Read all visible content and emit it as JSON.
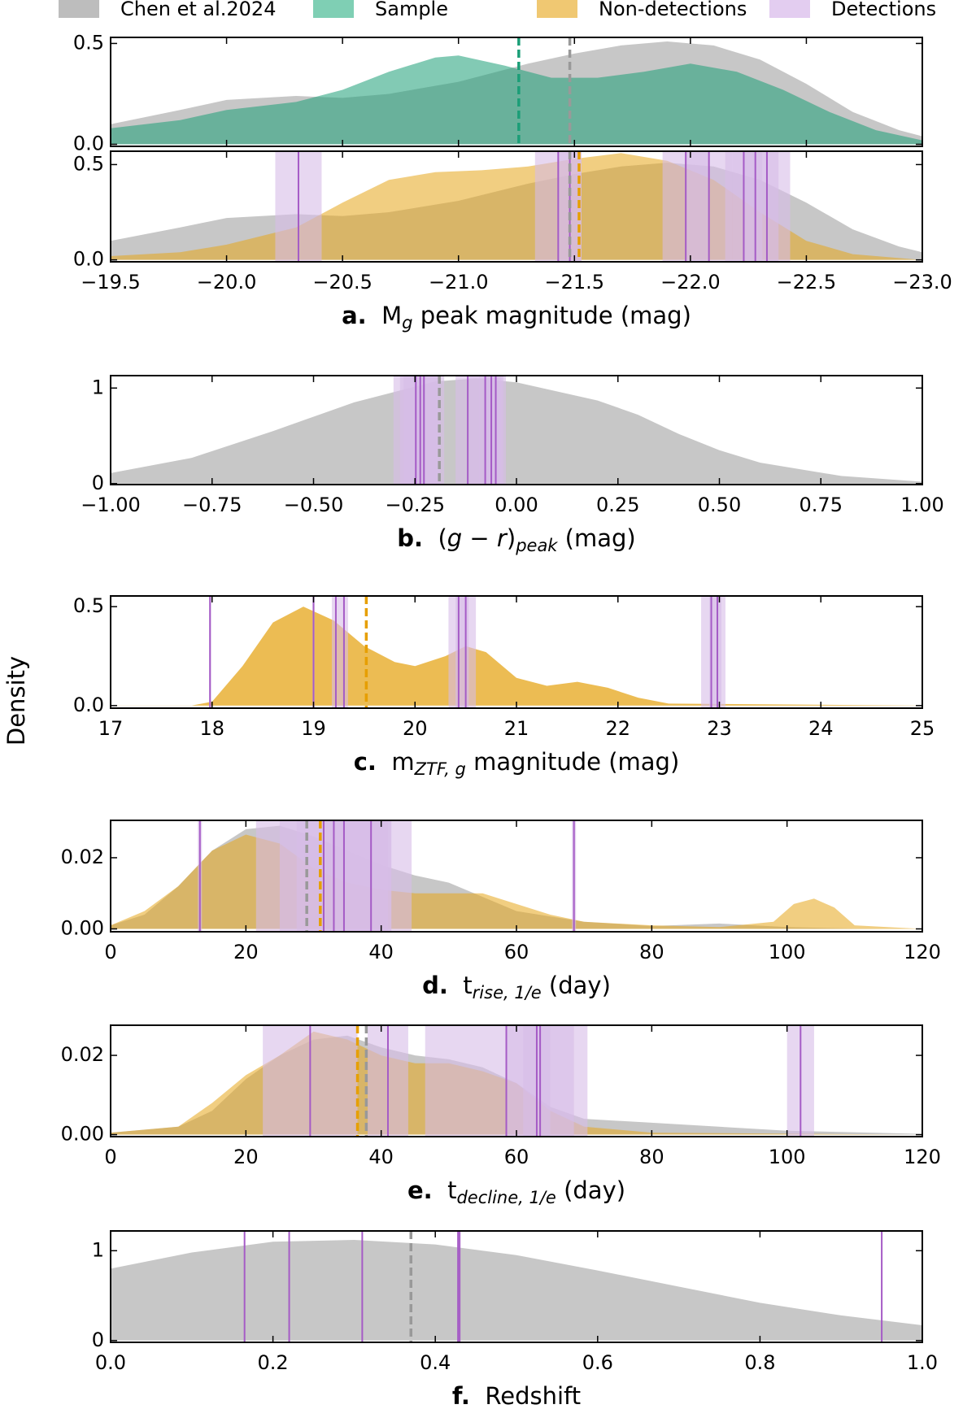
{
  "ylabel": "Density",
  "legend": [
    {
      "label": "Chen et al.2024",
      "color": "#bdbdbd"
    },
    {
      "label": "Sample",
      "color": "#7fcfb4"
    },
    {
      "label": "Non-detections",
      "color": "#f0c872"
    },
    {
      "label": "Detections",
      "color": "#e3cdf0"
    }
  ],
  "chart_data": [
    {
      "type": "area",
      "xlim": [
        -19.5,
        -23.0
      ],
      "xticks": [
        -19.5,
        -20.0,
        -20.5,
        -21.0,
        -21.5,
        -22.0,
        -22.5,
        -23.0
      ],
      "xticklabels": false,
      "ylim": [
        -0.01,
        0.53
      ],
      "yticks": [
        {
          "value": 0,
          "label": "0.0"
        },
        0.5
      ],
      "series": [
        {
          "color": "#b4b4b4",
          "x": [
            -19.5,
            -19.8,
            -20.0,
            -20.3,
            -20.5,
            -20.7,
            -21.0,
            -21.3,
            -21.5,
            -21.7,
            -21.9,
            -22.1,
            -22.3,
            -22.5,
            -22.7,
            -22.9,
            -23.0
          ],
          "values": [
            0.1,
            0.17,
            0.22,
            0.24,
            0.23,
            0.25,
            0.31,
            0.4,
            0.45,
            0.49,
            0.51,
            0.49,
            0.42,
            0.3,
            0.16,
            0.07,
            0.04
          ]
        },
        {
          "color": "#1b9e77",
          "x": [
            -19.5,
            -19.8,
            -20.0,
            -20.3,
            -20.5,
            -20.7,
            -20.9,
            -21.0,
            -21.2,
            -21.4,
            -21.6,
            -21.8,
            -22.0,
            -22.2,
            -22.4,
            -22.6,
            -22.8,
            -23.0
          ],
          "values": [
            0.08,
            0.12,
            0.17,
            0.21,
            0.27,
            0.36,
            0.43,
            0.44,
            0.39,
            0.33,
            0.33,
            0.36,
            0.4,
            0.36,
            0.27,
            0.16,
            0.07,
            0.02
          ]
        }
      ],
      "medians": [
        {
          "value": -21.26,
          "color": "#1b9e77"
        },
        {
          "value": -21.48,
          "color": "#999999"
        }
      ]
    },
    {
      "type": "area",
      "xlim": [
        -19.5,
        -23.0
      ],
      "xticks": [
        {
          "value": -19.5,
          "label": "−19.5"
        },
        {
          "value": -20.0,
          "label": "−20.0"
        },
        {
          "value": -20.5,
          "label": "−20.5"
        },
        {
          "value": -21.0,
          "label": "−21.0"
        },
        {
          "value": -21.5,
          "label": "−21.5"
        },
        {
          "value": -22.0,
          "label": "−22.0"
        },
        {
          "value": -22.5,
          "label": "−22.5"
        },
        {
          "value": -23.0,
          "label": "−23.0"
        }
      ],
      "ylim": [
        -0.01,
        0.57
      ],
      "yticks": [
        {
          "value": 0,
          "label": "0.0"
        },
        0.5
      ],
      "xlabel": {
        "letter": "a.",
        "parts": [
          {
            "text": "M"
          },
          {
            "text": "g",
            "sub": true
          },
          {
            "text": " peak magnitude (mag)"
          }
        ]
      },
      "series": [
        {
          "color": "#b4b4b4",
          "x": [
            -19.5,
            -19.8,
            -20.0,
            -20.3,
            -20.5,
            -20.7,
            -21.0,
            -21.3,
            -21.5,
            -21.7,
            -21.9,
            -22.1,
            -22.3,
            -22.5,
            -22.7,
            -22.9,
            -23.0
          ],
          "values": [
            0.1,
            0.17,
            0.22,
            0.24,
            0.23,
            0.25,
            0.31,
            0.4,
            0.45,
            0.49,
            0.51,
            0.49,
            0.42,
            0.3,
            0.16,
            0.07,
            0.04
          ]
        },
        {
          "color": "#e6a519",
          "x": [
            -19.5,
            -19.8,
            -20.0,
            -20.3,
            -20.5,
            -20.7,
            -20.9,
            -21.1,
            -21.3,
            -21.5,
            -21.7,
            -21.9,
            -22.1,
            -22.3,
            -22.5,
            -22.7,
            -23.0
          ],
          "values": [
            0.02,
            0.04,
            0.08,
            0.17,
            0.3,
            0.42,
            0.46,
            0.47,
            0.49,
            0.53,
            0.56,
            0.52,
            0.42,
            0.25,
            0.1,
            0.03,
            0.0
          ]
        }
      ],
      "medians": [
        {
          "value": -21.48,
          "color": "#999999"
        },
        {
          "value": -21.52,
          "color": "#e69f00"
        }
      ],
      "detections": {
        "color": "#a55bc6",
        "band_color": "#d7bde8",
        "x": [
          -20.31,
          -21.43,
          -21.48,
          -21.98,
          -22.08,
          -22.23,
          -22.28,
          -22.33
        ],
        "err": [
          0.1,
          0.1,
          0.05,
          0.1,
          0.1,
          0.08,
          0.1,
          0.1
        ]
      }
    },
    {
      "type": "area",
      "xlim": [
        -1.0,
        1.0
      ],
      "xticks": [
        {
          "value": -1.0,
          "label": "−1.00"
        },
        {
          "value": -0.75,
          "label": "−0.75"
        },
        {
          "value": -0.5,
          "label": "−0.50"
        },
        {
          "value": -0.25,
          "label": "−0.25"
        },
        {
          "value": 0,
          "label": "0.00"
        },
        {
          "value": 0.25,
          "label": "0.25"
        },
        {
          "value": 0.5,
          "label": "0.50"
        },
        {
          "value": 0.75,
          "label": "0.75"
        },
        {
          "value": 1.0,
          "label": "1.00"
        }
      ],
      "ylim": [
        -0.01,
        1.13
      ],
      "yticks": [
        0,
        1
      ],
      "xlabel": {
        "letter": "b.",
        "parts": [
          {
            "text": "("
          },
          {
            "text": "g − r",
            "italic": true
          },
          {
            "text": ")"
          },
          {
            "text": "peak",
            "sub": true
          },
          {
            "text": " (mag)"
          }
        ]
      },
      "series": [
        {
          "color": "#b4b4b4",
          "x": [
            -1.0,
            -0.8,
            -0.6,
            -0.4,
            -0.2,
            -0.1,
            0.0,
            0.2,
            0.3,
            0.4,
            0.5,
            0.6,
            0.8,
            1.0
          ],
          "values": [
            0.11,
            0.27,
            0.55,
            0.85,
            1.07,
            1.1,
            1.06,
            0.87,
            0.72,
            0.52,
            0.35,
            0.22,
            0.08,
            0.02
          ]
        }
      ],
      "medians": [
        {
          "value": -0.19,
          "color": "#999999"
        }
      ],
      "detections": {
        "color": "#a55bc6",
        "band_color": "#d7bde8",
        "x": [
          -0.248,
          -0.237,
          -0.228,
          -0.12,
          -0.077,
          -0.062,
          -0.051
        ],
        "err": [
          0.055,
          0.05,
          0.05,
          0.03,
          0.04,
          0.03,
          0.025
        ]
      }
    },
    {
      "type": "area",
      "xlim": [
        17,
        25
      ],
      "xticks": [
        17,
        18,
        19,
        20,
        21,
        22,
        23,
        24,
        25
      ],
      "ylim": [
        -0.013,
        0.554
      ],
      "yticks": [
        {
          "value": 0,
          "label": "0.0"
        },
        0.5
      ],
      "xlabel": {
        "letter": "c.",
        "parts": [
          {
            "text": "m"
          },
          {
            "text": "ZTF, g",
            "sub": true
          },
          {
            "text": " magnitude (mag)"
          }
        ]
      },
      "series": [
        {
          "color": "#e6a519",
          "x": [
            17,
            17.8,
            18.0,
            18.3,
            18.6,
            18.9,
            19.2,
            19.5,
            19.8,
            20.0,
            20.3,
            20.5,
            20.7,
            21.0,
            21.3,
            21.6,
            21.9,
            22.2,
            22.5,
            25
          ],
          "values": [
            0,
            0,
            0.02,
            0.2,
            0.42,
            0.5,
            0.43,
            0.3,
            0.22,
            0.2,
            0.25,
            0.3,
            0.27,
            0.14,
            0.1,
            0.12,
            0.09,
            0.04,
            0.01,
            0
          ]
        }
      ],
      "medians": [
        {
          "value": 19.52,
          "color": "#e69f00"
        }
      ],
      "detections": {
        "color": "#a55bc6",
        "band_color": "#d7bde8",
        "x": [
          17.98,
          19.0,
          19.22,
          19.3,
          20.43,
          20.5,
          22.92,
          22.98
        ],
        "err": [
          0.01,
          0.01,
          0.04,
          0.04,
          0.1,
          0.1,
          0.1,
          0.08
        ]
      }
    },
    {
      "type": "area",
      "xlim": [
        0,
        120
      ],
      "xticks": [
        0,
        20,
        40,
        60,
        80,
        100,
        120
      ],
      "ylim": [
        -0.0008,
        0.0305
      ],
      "yticks": [
        {
          "value": 0,
          "label": "0.00"
        },
        0.02
      ],
      "xlabel": {
        "letter": "d.",
        "parts": [
          {
            "text": "t"
          },
          {
            "text": "rise, 1/e",
            "sub": true
          },
          {
            "text": " (day)"
          }
        ]
      },
      "series": [
        {
          "color": "#b4b4b4",
          "x": [
            0,
            5,
            10,
            15,
            20,
            25,
            30,
            35,
            40,
            45,
            50,
            55,
            60,
            70,
            80,
            90,
            100,
            110,
            120
          ],
          "values": [
            0.001,
            0.004,
            0.012,
            0.022,
            0.028,
            0.029,
            0.026,
            0.022,
            0.018,
            0.015,
            0.013,
            0.009,
            0.005,
            0.002,
            0.0008,
            0.0015,
            0.0005,
            0.0001,
            0
          ]
        },
        {
          "color": "#e6a519",
          "x": [
            0,
            5,
            10,
            15,
            20,
            25,
            30,
            35,
            40,
            45,
            50,
            55,
            60,
            65,
            70,
            80,
            90,
            98,
            101,
            104,
            107,
            110,
            120
          ],
          "values": [
            0.001,
            0.005,
            0.012,
            0.022,
            0.0265,
            0.024,
            0.017,
            0.013,
            0.011,
            0.01,
            0.01,
            0.01,
            0.007,
            0.004,
            0.002,
            0.001,
            0.0005,
            0.002,
            0.007,
            0.0085,
            0.006,
            0.001,
            0
          ]
        }
      ],
      "medians": [
        {
          "value": 29,
          "color": "#999999"
        },
        {
          "value": 31,
          "color": "#e69f00"
        }
      ],
      "detections": {
        "color": "#a55bc6",
        "band_color": "#d7bde8",
        "x": [
          13.2,
          31.5,
          33,
          34.5,
          38.5,
          68.5
        ],
        "err": [
          0.3,
          10,
          8,
          7,
          6,
          0.3
        ]
      }
    },
    {
      "type": "area",
      "xlim": [
        0,
        120
      ],
      "xticks": [
        0,
        20,
        40,
        60,
        80,
        100,
        120
      ],
      "ylim": [
        -0.0005,
        0.0276
      ],
      "yticks": [
        {
          "value": 0,
          "label": "0.00"
        },
        0.02
      ],
      "xlabel": {
        "letter": "e.",
        "parts": [
          {
            "text": "t"
          },
          {
            "text": "decline, 1/e",
            "sub": true
          },
          {
            "text": " (day)"
          }
        ]
      },
      "series": [
        {
          "color": "#b4b4b4",
          "x": [
            0,
            10,
            15,
            20,
            25,
            30,
            35,
            40,
            45,
            50,
            55,
            60,
            65,
            70,
            80,
            100,
            120
          ],
          "values": [
            0.0005,
            0.002,
            0.006,
            0.014,
            0.02,
            0.024,
            0.025,
            0.022,
            0.02,
            0.019,
            0.017,
            0.013,
            0.007,
            0.004,
            0.003,
            0.001,
            0.0002
          ]
        },
        {
          "color": "#e6a519",
          "x": [
            0,
            10,
            15,
            20,
            25,
            30,
            35,
            40,
            45,
            50,
            55,
            60,
            65,
            70,
            80,
            120
          ],
          "values": [
            0.0005,
            0.002,
            0.008,
            0.015,
            0.02,
            0.026,
            0.024,
            0.02,
            0.018,
            0.018,
            0.016,
            0.013,
            0.006,
            0.002,
            0.0005,
            0
          ]
        }
      ],
      "medians": [
        {
          "value": 36.5,
          "color": "#e69f00"
        },
        {
          "value": 37.8,
          "color": "#999999"
        }
      ],
      "detections": {
        "color": "#a55bc6",
        "band_color": "#d7bde8",
        "x": [
          29.5,
          41,
          58.5,
          63,
          63.5,
          102
        ],
        "err": [
          7,
          3,
          12,
          2,
          5,
          2
        ]
      }
    },
    {
      "type": "area",
      "xlim": [
        0,
        1
      ],
      "xticks": [
        {
          "value": 0,
          "label": "0.0"
        },
        {
          "value": 0.2,
          "label": "0.2"
        },
        {
          "value": 0.4,
          "label": "0.4"
        },
        {
          "value": 0.6,
          "label": "0.6"
        },
        {
          "value": 0.8,
          "label": "0.8"
        },
        {
          "value": 1,
          "label": "1.0"
        }
      ],
      "ylim": [
        -0.02,
        1.22
      ],
      "yticks": [
        0,
        1
      ],
      "xlabel": {
        "letter": "f.",
        "parts": [
          {
            "text": "Redshift"
          }
        ]
      },
      "series": [
        {
          "color": "#b4b4b4",
          "x": [
            0,
            0.1,
            0.2,
            0.3,
            0.4,
            0.5,
            0.6,
            0.7,
            0.8,
            0.9,
            1.0
          ],
          "values": [
            0.8,
            0.98,
            1.1,
            1.12,
            1.07,
            0.95,
            0.78,
            0.6,
            0.42,
            0.28,
            0.17
          ]
        }
      ],
      "medians": [
        {
          "value": 0.37,
          "color": "#999999"
        }
      ],
      "detections": {
        "color": "#a55bc6",
        "band_color": "#d7bde8",
        "x": [
          0.165,
          0.22,
          0.31,
          0.428,
          0.43,
          0.95
        ]
      }
    }
  ]
}
